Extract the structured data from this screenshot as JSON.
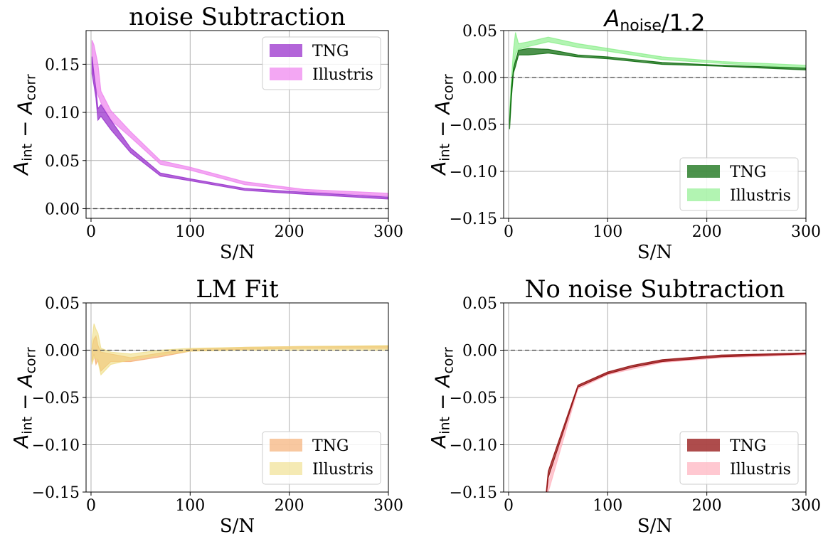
{
  "chart_data": [
    {
      "type": "area",
      "title": "noise Subtraction",
      "xlabel": "S/N",
      "ylabel": "A_int − A_corr",
      "xlim": [
        -5,
        300
      ],
      "ylim": [
        -0.01,
        0.185
      ],
      "xticks": [
        0,
        100,
        200,
        300
      ],
      "yticks": [
        0.0,
        0.05,
        0.1,
        0.15
      ],
      "ytick_labels": [
        "0.00",
        "0.05",
        "0.10",
        "0.15"
      ],
      "grid": true,
      "zero_line": true,
      "legend_placement": "upper right",
      "series": [
        {
          "name": "Illustris",
          "color": "#ee82ee",
          "alpha": 0.7,
          "x": [
            1,
            3,
            5,
            7,
            10,
            20,
            40,
            70,
            100,
            155,
            215,
            300
          ],
          "lower": [
            0.15,
            0.138,
            0.125,
            0.118,
            0.11,
            0.092,
            0.074,
            0.046,
            0.04,
            0.025,
            0.018,
            0.013
          ],
          "upper": [
            0.175,
            0.17,
            0.16,
            0.15,
            0.122,
            0.102,
            0.08,
            0.05,
            0.043,
            0.028,
            0.02,
            0.016
          ]
        },
        {
          "name": "TNG",
          "color": "#9932cc",
          "alpha": 0.75,
          "x": [
            1,
            3,
            5,
            7,
            10,
            20,
            40,
            70,
            100,
            155,
            215,
            300
          ],
          "lower": [
            0.14,
            0.128,
            0.115,
            0.092,
            0.096,
            0.082,
            0.058,
            0.034,
            0.029,
            0.019,
            0.015,
            0.01
          ],
          "upper": [
            0.158,
            0.14,
            0.124,
            0.104,
            0.108,
            0.092,
            0.063,
            0.037,
            0.031,
            0.021,
            0.017,
            0.012
          ]
        }
      ]
    },
    {
      "type": "area",
      "title": "A_noise/1.2",
      "xlabel": "S/N",
      "ylabel": "A_int − A_corr",
      "xlim": [
        -5,
        300
      ],
      "ylim": [
        -0.15,
        0.05
      ],
      "xticks": [
        0,
        100,
        200,
        300
      ],
      "yticks": [
        -0.15,
        -0.1,
        -0.05,
        0.0,
        0.05
      ],
      "ytick_labels": [
        "−0.15",
        "−0.10",
        "−0.05",
        "0.00",
        "0.05"
      ],
      "grid": true,
      "zero_line": true,
      "legend_placement": "lower right",
      "series": [
        {
          "name": "Illustris",
          "color": "#7fec7f",
          "alpha": 0.6,
          "x": [
            1,
            3,
            5,
            7,
            10,
            20,
            40,
            70,
            100,
            155,
            215,
            300
          ],
          "lower": [
            -0.05,
            -0.015,
            0.01,
            0.025,
            0.03,
            0.033,
            0.038,
            0.032,
            0.028,
            0.019,
            0.015,
            0.01
          ],
          "upper": [
            -0.035,
            0.0,
            0.03,
            0.048,
            0.036,
            0.038,
            0.043,
            0.036,
            0.031,
            0.022,
            0.017,
            0.013
          ]
        },
        {
          "name": "TNG",
          "color": "#006400",
          "alpha": 0.7,
          "x": [
            1,
            3,
            5,
            7,
            10,
            20,
            40,
            70,
            100,
            155,
            215,
            300
          ],
          "lower": [
            -0.055,
            -0.02,
            0.005,
            0.012,
            0.024,
            0.024,
            0.026,
            0.022,
            0.02,
            0.014,
            0.012,
            0.008
          ],
          "upper": [
            -0.045,
            -0.01,
            0.01,
            0.018,
            0.029,
            0.031,
            0.03,
            0.024,
            0.022,
            0.016,
            0.013,
            0.01
          ]
        }
      ]
    },
    {
      "type": "area",
      "title": "LM Fit",
      "xlabel": "S/N",
      "ylabel": "A_int − A_corr",
      "xlim": [
        -5,
        300
      ],
      "ylim": [
        -0.15,
        0.05
      ],
      "xticks": [
        0,
        100,
        200,
        300
      ],
      "yticks": [
        -0.15,
        -0.1,
        -0.05,
        0.0,
        0.05
      ],
      "ytick_labels": [
        "−0.15",
        "−0.10",
        "−0.05",
        "0.00",
        "0.05"
      ],
      "grid": true,
      "zero_line": true,
      "legend_placement": "lower right",
      "series": [
        {
          "name": "TNG",
          "color": "#f4a460",
          "alpha": 0.6,
          "x": [
            1,
            3,
            5,
            7,
            10,
            20,
            40,
            70,
            100,
            155,
            215,
            300
          ],
          "lower": [
            -0.012,
            -0.004,
            -0.015,
            -0.01,
            -0.022,
            -0.012,
            -0.012,
            -0.007,
            -0.001,
            0.001,
            0.002,
            0.002
          ],
          "upper": [
            0.002,
            0.012,
            0.015,
            0.005,
            -0.002,
            -0.004,
            -0.008,
            -0.003,
            0.001,
            0.003,
            0.004,
            0.004
          ]
        },
        {
          "name": "Illustris",
          "color": "#eedc82",
          "alpha": 0.6,
          "x": [
            1,
            3,
            5,
            7,
            10,
            20,
            40,
            70,
            100,
            155,
            215,
            300
          ],
          "lower": [
            -0.015,
            -0.008,
            -0.008,
            -0.012,
            -0.026,
            -0.015,
            -0.01,
            -0.005,
            -0.001,
            0.0,
            0.0,
            0.0
          ],
          "upper": [
            0.01,
            0.028,
            0.022,
            0.018,
            0.002,
            -0.002,
            -0.004,
            0.0,
            0.002,
            0.003,
            0.004,
            0.005
          ]
        }
      ]
    },
    {
      "type": "area",
      "title": "No noise Subtraction",
      "xlabel": "S/N",
      "ylabel": "A_int − A_corr",
      "xlim": [
        -5,
        300
      ],
      "ylim": [
        -0.15,
        0.05
      ],
      "xticks": [
        0,
        100,
        200,
        300
      ],
      "yticks": [
        -0.15,
        -0.1,
        -0.05,
        0.0,
        0.05
      ],
      "ytick_labels": [
        "−0.15",
        "−0.10",
        "−0.05",
        "0.00",
        "0.05"
      ],
      "grid": true,
      "zero_line": true,
      "legend_placement": "lower right",
      "series": [
        {
          "name": "Illustris",
          "color": "#ffb6c1",
          "alpha": 0.75,
          "x": [
            38,
            40,
            70,
            100,
            125,
            155,
            215,
            300
          ],
          "lower": [
            -0.155,
            -0.15,
            -0.041,
            -0.026,
            -0.02,
            -0.013,
            -0.008,
            -0.005
          ],
          "upper": [
            -0.15,
            -0.14,
            -0.039,
            -0.024,
            -0.018,
            -0.011,
            -0.006,
            -0.003
          ]
        },
        {
          "name": "TNG",
          "color": "#8b0000",
          "alpha": 0.7,
          "x": [
            38,
            40,
            70,
            100,
            125,
            155,
            215,
            300
          ],
          "lower": [
            -0.155,
            -0.135,
            -0.039,
            -0.025,
            -0.018,
            -0.012,
            -0.007,
            -0.004
          ],
          "upper": [
            -0.15,
            -0.128,
            -0.037,
            -0.023,
            -0.016,
            -0.01,
            -0.005,
            -0.003
          ]
        }
      ]
    }
  ]
}
